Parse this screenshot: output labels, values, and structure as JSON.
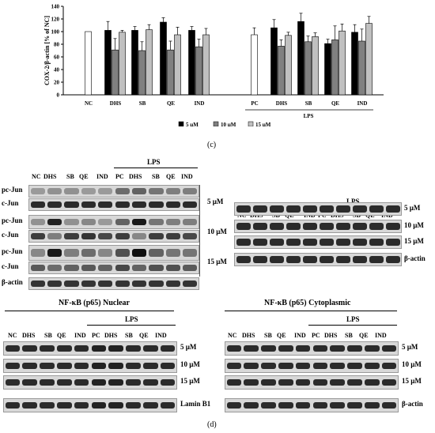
{
  "chart_data": {
    "type": "bar",
    "ylabel": "COX-2/β-actin [% of NC]",
    "ylim": [
      0,
      140
    ],
    "yticks": [
      0,
      20,
      40,
      60,
      80,
      100,
      120,
      140
    ],
    "series": [
      {
        "name": "5 µM",
        "color": "#000000"
      },
      {
        "name": "10 µM",
        "color": "#808080"
      },
      {
        "name": "15 µM",
        "color": "#c0c0c0"
      }
    ],
    "control_color": "#ffffff",
    "groups": [
      {
        "label": "NC",
        "control": true,
        "values": [
          100
        ],
        "errors": [
          0
        ]
      },
      {
        "label": "DHS",
        "values": [
          102,
          71,
          99
        ],
        "errors": [
          14,
          18,
          3
        ]
      },
      {
        "label": "SB",
        "values": [
          102,
          70,
          103
        ],
        "errors": [
          6,
          14,
          8
        ]
      },
      {
        "label": "QE",
        "values": [
          115,
          71,
          95
        ],
        "errors": [
          7,
          14,
          12
        ]
      },
      {
        "label": "IND",
        "values": [
          102,
          76,
          95
        ],
        "errors": [
          6,
          12,
          10
        ]
      },
      {
        "label": "PC",
        "control": true,
        "values": [
          95
        ],
        "errors": [
          11
        ]
      },
      {
        "label": "DHS",
        "values": [
          106,
          77,
          94
        ],
        "errors": [
          13,
          10,
          5
        ]
      },
      {
        "label": "SB",
        "values": [
          116,
          84,
          92
        ],
        "errors": [
          13,
          9,
          6
        ]
      },
      {
        "label": "QE",
        "values": [
          81,
          87,
          101
        ],
        "errors": [
          7,
          22,
          11
        ]
      },
      {
        "label": "IND",
        "values": [
          99,
          85,
          113
        ],
        "errors": [
          12,
          19,
          11
        ]
      }
    ],
    "bracket_label": "LPS"
  },
  "caption_c": "(c)",
  "caption_d": "(d)",
  "lps": "LPS",
  "lanes": [
    "NC",
    "DHS",
    "SB",
    "QE",
    "IND",
    "PC",
    "DHS",
    "SB",
    "QE",
    "IND"
  ],
  "doses": [
    "5 µM",
    "10 µM",
    "15 µM"
  ],
  "cjun_rows": [
    "pc-Jun",
    "c-Jun",
    "pc-Jun",
    "c-Jun",
    "pc-Jun",
    "c-Jun",
    "β-actin"
  ],
  "actin_label": "β-actin",
  "nfkb_nuclear_title": "NF-κB (p65) Nuclear",
  "nfkb_cyto_title": "NF-κB (p65) Cytoplasmic",
  "lamin_label": "Lamin B1"
}
